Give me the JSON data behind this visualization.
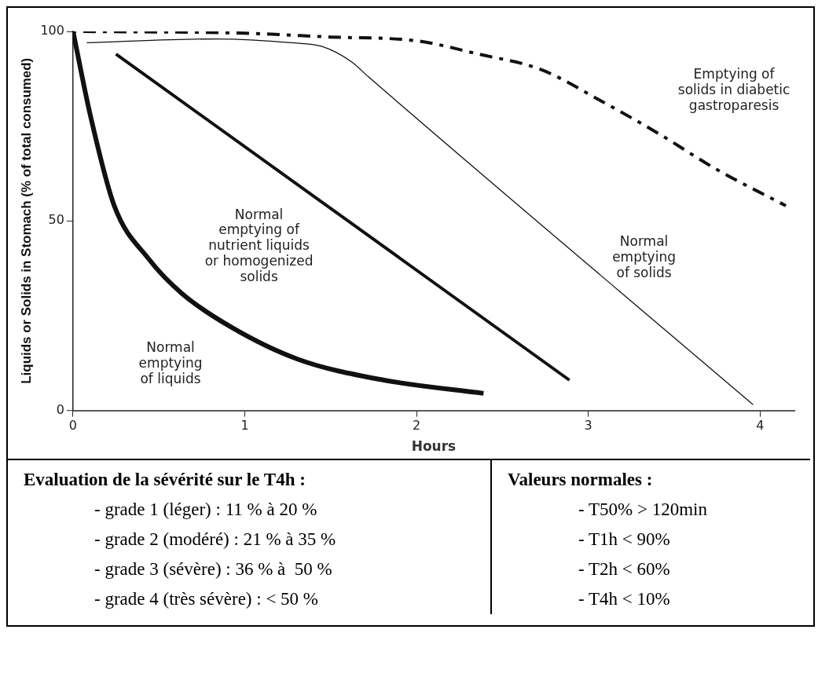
{
  "chart_data": {
    "type": "line",
    "xlabel": "Hours",
    "ylabel": "Liquids or Solids in Stomach (% of total consumed)",
    "xlim": [
      0,
      4.2
    ],
    "ylim": [
      0,
      100
    ],
    "xticks": [
      0,
      1,
      2,
      3,
      4
    ],
    "yticks": [
      0,
      50,
      100
    ],
    "grid": false,
    "legend": false,
    "marker": "none",
    "series": [
      {
        "name": "Normal\nemptying\nof liquids",
        "color": "#111111",
        "line_style": "solid",
        "x": [
          0,
          0.1,
          0.24,
          0.44,
          0.63,
          0.92,
          1.31,
          1.81,
          2.39
        ],
        "values": [
          100,
          78,
          54,
          40,
          31,
          22,
          13.5,
          8,
          4.5
        ]
      },
      {
        "name": "Normal\nemptying of\nnutrient liquids\nor homogenized\nsolids",
        "color": "#111111",
        "line_style": "solid",
        "x": [
          0.25,
          2.89
        ],
        "values": [
          94,
          8
        ]
      },
      {
        "name": "Normal\nemptying\nof solids",
        "color": "#111111",
        "line_style": "solid",
        "x": [
          0.08,
          0.84,
          1.27,
          1.45,
          1.62,
          1.72,
          3.96
        ],
        "values": [
          97,
          98,
          97,
          96,
          92,
          88,
          1.5
        ]
      },
      {
        "name": "Emptying of\nsolids in diabetic\ngastroparesis",
        "color": "#111111",
        "line_style": "dashed",
        "x": [
          0,
          1,
          1.5,
          2,
          2.36,
          2.72,
          3.08,
          3.41,
          3.75,
          4.15
        ],
        "values": [
          100,
          99.5,
          98.5,
          97.5,
          94,
          90,
          81.5,
          73,
          63.5,
          54
        ]
      }
    ],
    "annotations": [
      "Evaluation de la sévérité sur le T4h :",
      "Valeurs normales :",
      "- grade 1 (léger) : 11 % à 20 %",
      "- T50% > 120min",
      "- grade 2 (modéré) : 21 % à 35 %",
      "- T1h < 90%",
      "- grade 3 (sévère) : 36 % à  50 %",
      "- T2h < 60%",
      "- grade 4 (très sévère) : < 50 %",
      "- T4h < 10%"
    ]
  }
}
